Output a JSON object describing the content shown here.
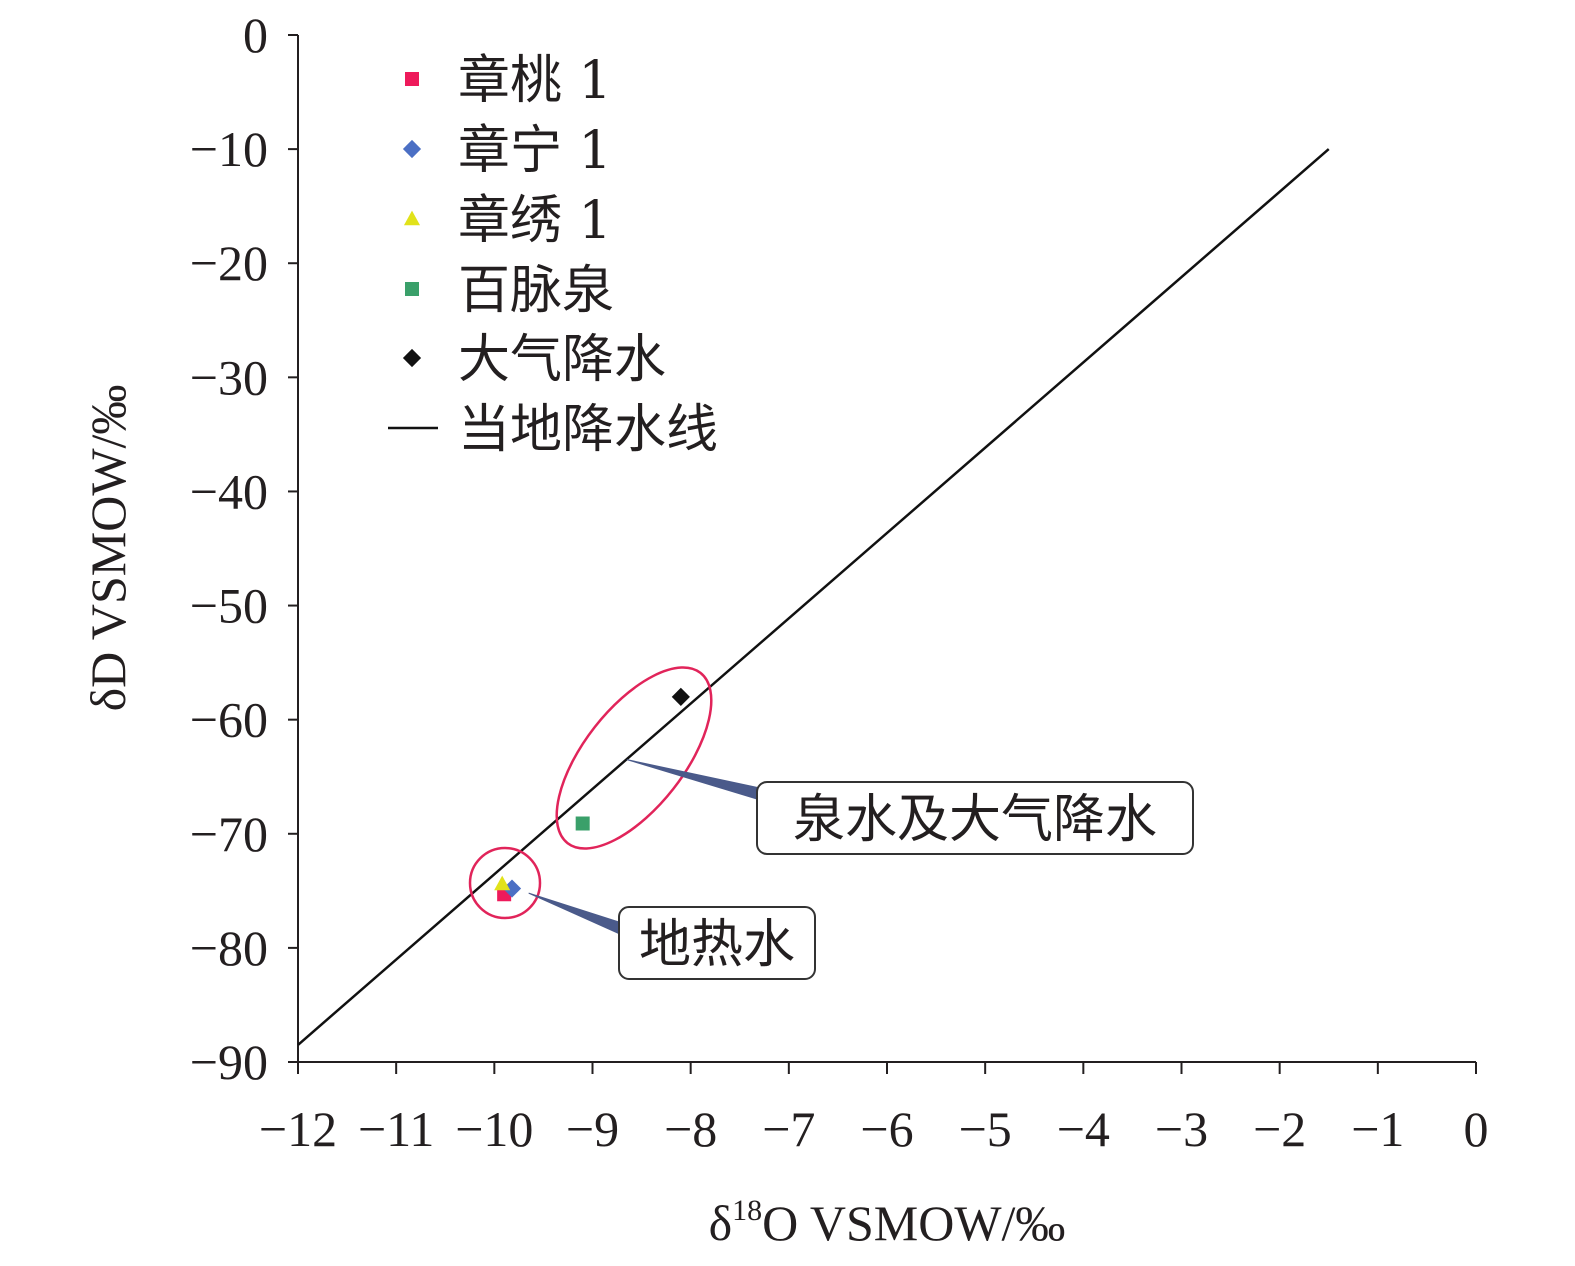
{
  "chart_data": {
    "type": "scatter",
    "xlabel": {
      "delta": "δ",
      "sup": "18",
      "rest": "O VSMOW/‰"
    },
    "ylabel": "δD VSMOW/‰",
    "xlim": [
      -12,
      0
    ],
    "ylim": [
      -90,
      0
    ],
    "xticks": [
      -12,
      -11,
      -10,
      -9,
      -8,
      -7,
      -6,
      -5,
      -4,
      -3,
      -2,
      -1,
      0
    ],
    "yticks": [
      0,
      -10,
      -20,
      -30,
      -40,
      -50,
      -60,
      -70,
      -80,
      -90
    ],
    "tick_sign": "−",
    "grid": false,
    "legend_position": "top-left",
    "series": [
      {
        "name": "章桃 1",
        "marker": "square",
        "color": "#ee1a5b",
        "points": [
          {
            "x": -9.9,
            "y": -75.3
          }
        ]
      },
      {
        "name": "章宁 1",
        "marker": "diamond",
        "color": "#4b6fc4",
        "points": [
          {
            "x": -9.82,
            "y": -74.8
          }
        ]
      },
      {
        "name": "章绣 1",
        "marker": "triangle",
        "color": "#e1e21a",
        "points": [
          {
            "x": -9.92,
            "y": -74.4
          }
        ]
      },
      {
        "name": "百脉泉",
        "marker": "square",
        "color": "#3aa06a",
        "points": [
          {
            "x": -9.1,
            "y": -69.1
          }
        ]
      },
      {
        "name": "大气降水",
        "marker": "diamond",
        "color": "#111111",
        "points": [
          {
            "x": -8.1,
            "y": -58.0
          }
        ]
      }
    ],
    "line": {
      "name": "当地降水线",
      "color": "#111111",
      "points": [
        {
          "x": -12,
          "y": -88.5
        },
        {
          "x": -1.5,
          "y": -10.0
        }
      ]
    },
    "annotations": [
      {
        "text": "泉水及大气降水",
        "target": {
          "x": -8.65,
          "y": -63.5
        }
      },
      {
        "text": "地热水",
        "target": {
          "x": -9.65,
          "y": -75.2
        }
      }
    ]
  }
}
